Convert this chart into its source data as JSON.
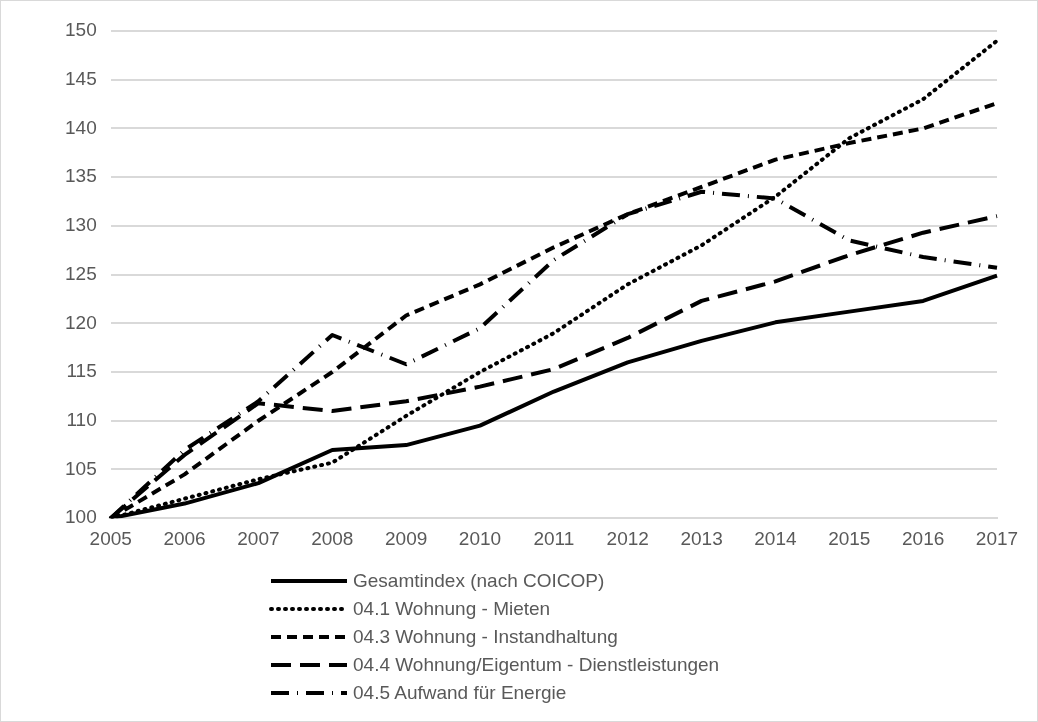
{
  "chart_data": {
    "type": "line",
    "categories": [
      "2005",
      "2006",
      "2007",
      "2008",
      "2009",
      "2010",
      "2011",
      "2012",
      "2013",
      "2014",
      "2015",
      "2016",
      "2017"
    ],
    "ylim": [
      100,
      150
    ],
    "yticks": [
      100,
      105,
      110,
      115,
      120,
      125,
      130,
      135,
      140,
      145,
      150
    ],
    "grid": "y",
    "legend": "bottom",
    "marker": "none",
    "series": [
      {
        "name": "Gesamtindex (nach COICOP)",
        "color": "#000000",
        "line_style": "solid",
        "values": [
          100,
          101.5,
          103.6,
          107,
          107.5,
          109.5,
          113,
          116,
          118.2,
          120.1,
          121.2,
          122.3,
          124.9
        ]
      },
      {
        "name": "04.1 Wohnung - Mieten",
        "color": "#000000",
        "line_style": "dotted",
        "values": [
          100,
          102,
          104,
          105.7,
          110.5,
          115,
          119,
          124,
          128,
          133,
          139,
          143,
          149
        ]
      },
      {
        "name": "04.3 Wohnung - Instandhaltung",
        "color": "#000000",
        "line_style": "dashed",
        "values": [
          100,
          104.5,
          110,
          115,
          120.8,
          124,
          127.8,
          131.2,
          134,
          136.8,
          138.5,
          140,
          142.6
        ]
      },
      {
        "name": "04.4 Wohnung/Eigentum - Dienstleistungen",
        "color": "#000000",
        "line_style": "longdash",
        "values": [
          100,
          106.5,
          111.8,
          111,
          112,
          113.5,
          115.3,
          118.5,
          122.3,
          124.3,
          127,
          129.3,
          131
        ]
      },
      {
        "name": "04.5 Aufwand für Energie",
        "color": "#000000",
        "line_style": "dashdot",
        "values": [
          100,
          107,
          112,
          118.8,
          115.8,
          119.5,
          126.5,
          131.2,
          133.5,
          132.8,
          128.5,
          126.8,
          125.7
        ]
      }
    ]
  }
}
